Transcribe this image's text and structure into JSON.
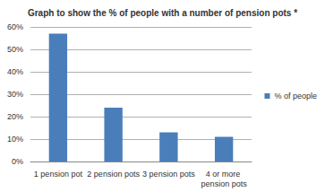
{
  "chart_data": {
    "type": "bar",
    "title": "Graph to show the % of people with a number of pension pots *",
    "categories": [
      "1 pension pot",
      "2 pension pots",
      "3 pension pots",
      "4 or more pension pots"
    ],
    "series": [
      {
        "name": "% of people",
        "color": "#4a7ebb",
        "values": [
          57,
          24,
          13,
          11
        ]
      }
    ],
    "ylim": [
      0,
      60
    ],
    "yticks": [
      {
        "value": 0,
        "label": "0%"
      },
      {
        "value": 10,
        "label": "10%"
      },
      {
        "value": 20,
        "label": "20%"
      },
      {
        "value": 30,
        "label": "30%"
      },
      {
        "value": 40,
        "label": "40%"
      },
      {
        "value": 50,
        "label": "50%"
      },
      {
        "value": 60,
        "label": "60%"
      }
    ],
    "grid": true,
    "legend": "right"
  }
}
